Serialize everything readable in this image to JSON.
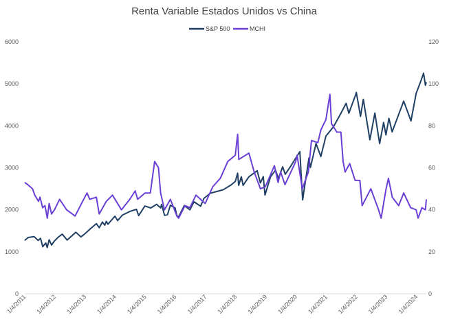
{
  "chart_data": {
    "type": "line",
    "title": "Renta Variable Estados Unidos vs China",
    "xlabel": "",
    "ylabel": "",
    "legend_position": "top-center",
    "grid": false,
    "x_ticks": [
      "1/4/2011",
      "1/4/2012",
      "1/4/2013",
      "1/4/2014",
      "1/4/2015",
      "1/4/2016",
      "1/4/2017",
      "1/4/2018",
      "1/4/2019",
      "1/4/2020",
      "1/4/2021",
      "1/4/2022",
      "1/4/2023",
      "1/4/2024"
    ],
    "x_range": [
      "2011-01-04",
      "2024-04-30"
    ],
    "y_left": {
      "ticks": [
        "0",
        "1000",
        "2000",
        "3000",
        "4000",
        "5000",
        "6000"
      ],
      "range": [
        0,
        6000
      ]
    },
    "y_right": {
      "ticks": [
        "0",
        "20",
        "40",
        "60",
        "80",
        "100",
        "120"
      ],
      "range": [
        0,
        120
      ]
    },
    "series": [
      {
        "name": "S&P 500",
        "axis": "left",
        "color": "#1f3f64",
        "points": [
          [
            "2011-01-04",
            1270
          ],
          [
            "2011-02-15",
            1340
          ],
          [
            "2011-04-29",
            1360
          ],
          [
            "2011-06-15",
            1270
          ],
          [
            "2011-07-15",
            1320
          ],
          [
            "2011-08-10",
            1120
          ],
          [
            "2011-09-15",
            1210
          ],
          [
            "2011-10-03",
            1100
          ],
          [
            "2011-10-27",
            1285
          ],
          [
            "2011-11-25",
            1160
          ],
          [
            "2011-12-30",
            1257
          ],
          [
            "2012-02-15",
            1350
          ],
          [
            "2012-04-02",
            1419
          ],
          [
            "2012-06-01",
            1278
          ],
          [
            "2012-09-14",
            1465
          ],
          [
            "2012-11-15",
            1353
          ],
          [
            "2012-12-31",
            1426
          ],
          [
            "2013-03-15",
            1560
          ],
          [
            "2013-05-21",
            1669
          ],
          [
            "2013-06-24",
            1573
          ],
          [
            "2013-08-02",
            1709
          ],
          [
            "2013-08-30",
            1633
          ],
          [
            "2013-09-18",
            1725
          ],
          [
            "2013-10-08",
            1656
          ],
          [
            "2013-12-31",
            1848
          ],
          [
            "2014-02-03",
            1742
          ],
          [
            "2014-03-31",
            1872
          ],
          [
            "2014-06-30",
            1960
          ],
          [
            "2014-09-18",
            2011
          ],
          [
            "2014-10-15",
            1862
          ],
          [
            "2014-12-29",
            2090
          ],
          [
            "2015-03-10",
            2044
          ],
          [
            "2015-05-21",
            2130
          ],
          [
            "2015-07-08",
            2046
          ],
          [
            "2015-07-20",
            2128
          ],
          [
            "2015-08-25",
            1867
          ],
          [
            "2015-09-29",
            1884
          ],
          [
            "2015-11-03",
            2109
          ],
          [
            "2015-12-31",
            2044
          ],
          [
            "2016-01-20",
            1859
          ],
          [
            "2016-02-11",
            1829
          ],
          [
            "2016-04-20",
            2102
          ],
          [
            "2016-06-27",
            2000
          ],
          [
            "2016-08-15",
            2190
          ],
          [
            "2016-11-04",
            2085
          ],
          [
            "2016-12-13",
            2271
          ],
          [
            "2017-03-01",
            2395
          ],
          [
            "2017-06-19",
            2453
          ],
          [
            "2017-08-07",
            2480
          ],
          [
            "2017-11-07",
            2591
          ],
          [
            "2017-12-29",
            2674
          ],
          [
            "2018-01-26",
            2873
          ],
          [
            "2018-02-08",
            2581
          ],
          [
            "2018-03-12",
            2786
          ],
          [
            "2018-04-02",
            2582
          ],
          [
            "2018-06-12",
            2786
          ],
          [
            "2018-09-20",
            2930
          ],
          [
            "2018-10-29",
            2641
          ],
          [
            "2018-12-03",
            2790
          ],
          [
            "2018-12-24",
            2351
          ],
          [
            "2019-02-28",
            2784
          ],
          [
            "2019-04-30",
            2946
          ],
          [
            "2019-06-03",
            2744
          ],
          [
            "2019-07-26",
            3025
          ],
          [
            "2019-08-26",
            2847
          ],
          [
            "2019-10-31",
            3038
          ],
          [
            "2019-12-31",
            3231
          ],
          [
            "2020-02-19",
            3386
          ],
          [
            "2020-03-23",
            2237
          ],
          [
            "2020-06-08",
            3232
          ],
          [
            "2020-06-26",
            3009
          ],
          [
            "2020-09-02",
            3580
          ],
          [
            "2020-10-30",
            3270
          ],
          [
            "2020-12-31",
            3756
          ],
          [
            "2021-03-31",
            3973
          ],
          [
            "2021-06-30",
            4298
          ],
          [
            "2021-09-02",
            4537
          ],
          [
            "2021-10-04",
            4300
          ],
          [
            "2021-12-31",
            4766
          ],
          [
            "2022-01-03",
            4796
          ],
          [
            "2022-02-23",
            4225
          ],
          [
            "2022-03-29",
            4632
          ],
          [
            "2022-06-16",
            3667
          ],
          [
            "2022-08-16",
            4305
          ],
          [
            "2022-10-12",
            3577
          ],
          [
            "2022-11-30",
            4080
          ],
          [
            "2022-12-28",
            3783
          ],
          [
            "2023-02-02",
            4179
          ],
          [
            "2023-03-13",
            3855
          ],
          [
            "2023-07-31",
            4589
          ],
          [
            "2023-10-27",
            4117
          ],
          [
            "2023-12-29",
            4770
          ],
          [
            "2024-02-29",
            5096
          ],
          [
            "2024-03-28",
            5254
          ],
          [
            "2024-04-19",
            4967
          ],
          [
            "2024-04-30",
            5036
          ]
        ]
      },
      {
        "name": "MCHI",
        "axis": "right",
        "color": "#6a3fd6",
        "points": [
          [
            "2011-01-04",
            53
          ],
          [
            "2011-02-10",
            52
          ],
          [
            "2011-04-08",
            50
          ],
          [
            "2011-05-06",
            47
          ],
          [
            "2011-06-20",
            44
          ],
          [
            "2011-07-08",
            46
          ],
          [
            "2011-08-09",
            41
          ],
          [
            "2011-09-06",
            42
          ],
          [
            "2011-10-04",
            36
          ],
          [
            "2011-10-27",
            43
          ],
          [
            "2011-11-25",
            38
          ],
          [
            "2011-12-30",
            40
          ],
          [
            "2012-03-01",
            45
          ],
          [
            "2012-05-25",
            40
          ],
          [
            "2012-09-05",
            37
          ],
          [
            "2012-12-31",
            46
          ],
          [
            "2013-01-28",
            48
          ],
          [
            "2013-03-01",
            45
          ],
          [
            "2013-05-20",
            46
          ],
          [
            "2013-06-24",
            38
          ],
          [
            "2013-09-18",
            44
          ],
          [
            "2013-12-02",
            47
          ],
          [
            "2014-03-20",
            40
          ],
          [
            "2014-06-30",
            45
          ],
          [
            "2014-09-03",
            49
          ],
          [
            "2014-10-03",
            45
          ],
          [
            "2014-12-31",
            48
          ],
          [
            "2015-03-05",
            48
          ],
          [
            "2015-04-27",
            63
          ],
          [
            "2015-06-12",
            60
          ],
          [
            "2015-07-08",
            48
          ],
          [
            "2015-08-24",
            40
          ],
          [
            "2015-11-03",
            45
          ],
          [
            "2016-01-21",
            37
          ],
          [
            "2016-02-11",
            36
          ],
          [
            "2016-04-29",
            42
          ],
          [
            "2016-06-27",
            41
          ],
          [
            "2016-09-08",
            47
          ],
          [
            "2016-12-29",
            43
          ],
          [
            "2017-03-31",
            51
          ],
          [
            "2017-06-30",
            55
          ],
          [
            "2017-09-29",
            63
          ],
          [
            "2017-12-29",
            66
          ],
          [
            "2018-01-26",
            76
          ],
          [
            "2018-02-09",
            64
          ],
          [
            "2018-06-12",
            67
          ],
          [
            "2018-08-15",
            58
          ],
          [
            "2018-10-30",
            50
          ],
          [
            "2018-12-28",
            51
          ],
          [
            "2019-04-17",
            61
          ],
          [
            "2019-05-31",
            53
          ],
          [
            "2019-07-01",
            58
          ],
          [
            "2019-08-23",
            52
          ],
          [
            "2019-12-31",
            63
          ],
          [
            "2020-01-17",
            66
          ],
          [
            "2020-03-19",
            50
          ],
          [
            "2020-06-01",
            58
          ],
          [
            "2020-07-09",
            73
          ],
          [
            "2020-09-24",
            72
          ],
          [
            "2020-10-30",
            78
          ],
          [
            "2020-12-31",
            83
          ],
          [
            "2021-02-17",
            95
          ],
          [
            "2021-03-08",
            81
          ],
          [
            "2021-05-12",
            77
          ],
          [
            "2021-06-30",
            77
          ],
          [
            "2021-07-27",
            63
          ],
          [
            "2021-08-20",
            58
          ],
          [
            "2021-10-15",
            62
          ],
          [
            "2021-12-20",
            54
          ],
          [
            "2022-02-15",
            54
          ],
          [
            "2022-03-15",
            42
          ],
          [
            "2022-06-28",
            50
          ],
          [
            "2022-09-30",
            40
          ],
          [
            "2022-10-31",
            36
          ],
          [
            "2022-12-30",
            50
          ],
          [
            "2023-01-27",
            55
          ],
          [
            "2023-03-15",
            46
          ],
          [
            "2023-05-31",
            42
          ],
          [
            "2023-07-31",
            48
          ],
          [
            "2023-10-23",
            41
          ],
          [
            "2023-12-29",
            40
          ],
          [
            "2024-01-22",
            36
          ],
          [
            "2024-03-08",
            41
          ],
          [
            "2024-04-19",
            40
          ],
          [
            "2024-04-30",
            45
          ]
        ]
      }
    ]
  }
}
